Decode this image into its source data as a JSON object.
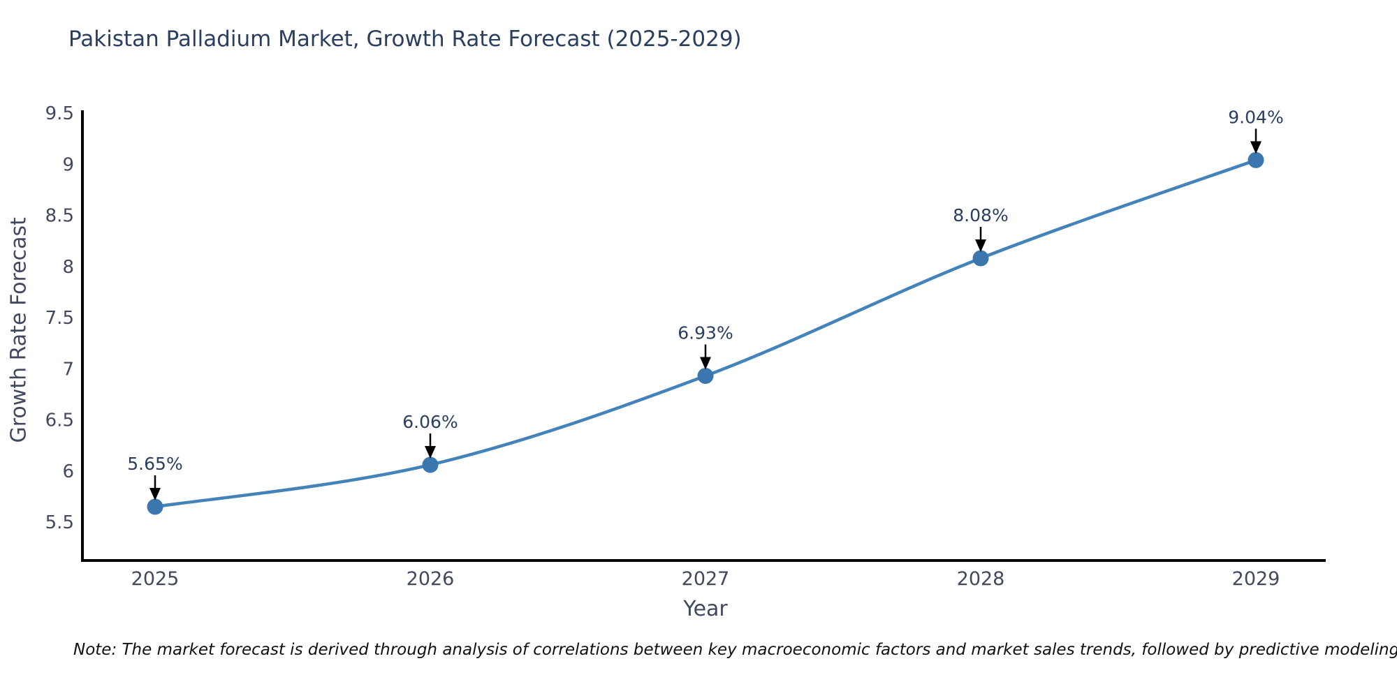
{
  "title": "Pakistan Palladium Market, Growth Rate Forecast (2025-2029)",
  "note": "Note: The market forecast is derived through analysis of correlations between key macroeconomic factors and market sales trends, followed by predictive modeling to project future sales",
  "chart_data": {
    "type": "line",
    "title": "Pakistan Palladium Market, Growth Rate Forecast (2025-2029)",
    "xlabel": "Year",
    "ylabel": "Growth Rate Forecast",
    "categories": [
      "2025",
      "2026",
      "2027",
      "2028",
      "2029"
    ],
    "values": [
      5.65,
      6.06,
      6.93,
      8.08,
      9.04
    ],
    "point_labels": [
      "5.65%",
      "6.06%",
      "6.93%",
      "8.08%",
      "9.04%"
    ],
    "yticks": [
      5.5,
      6,
      6.5,
      7,
      7.5,
      8,
      8.5,
      9,
      9.5
    ],
    "ylim": [
      5.12,
      9.51
    ],
    "grid": "off",
    "legend": "none",
    "line_style": "spline",
    "colors": {
      "line": "#4383ba",
      "marker": "#3b76ae",
      "axis": "#000000",
      "tick_label": "#42495e",
      "title": "#2a3f5f",
      "annotation": "#2a3f5f",
      "arrow": "#000000"
    }
  }
}
